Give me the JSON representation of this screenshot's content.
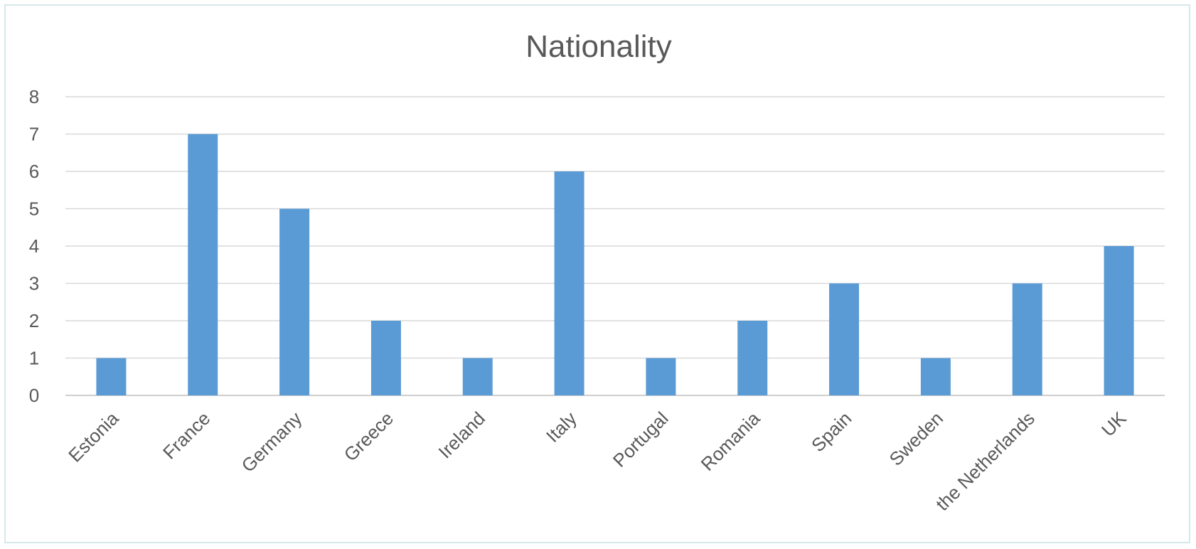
{
  "chart_data": {
    "type": "bar",
    "title": "Nationality",
    "categories": [
      "Estonia",
      "France",
      "Germany",
      "Greece",
      "Ireland",
      "Italy",
      "Portugal",
      "Romania",
      "Spain",
      "Sweden",
      "the Netherlands",
      "UK"
    ],
    "values": [
      1,
      7,
      5,
      2,
      1,
      6,
      1,
      2,
      3,
      1,
      3,
      4
    ],
    "yticks": [
      "0",
      "1",
      "2",
      "3",
      "4",
      "5",
      "6",
      "7",
      "8"
    ],
    "ylim": [
      0,
      8
    ],
    "grid": true,
    "legend": "none",
    "bar_color": "#5b9bd5",
    "grid_color": "#d9d9d9",
    "text_color": "#595959"
  }
}
